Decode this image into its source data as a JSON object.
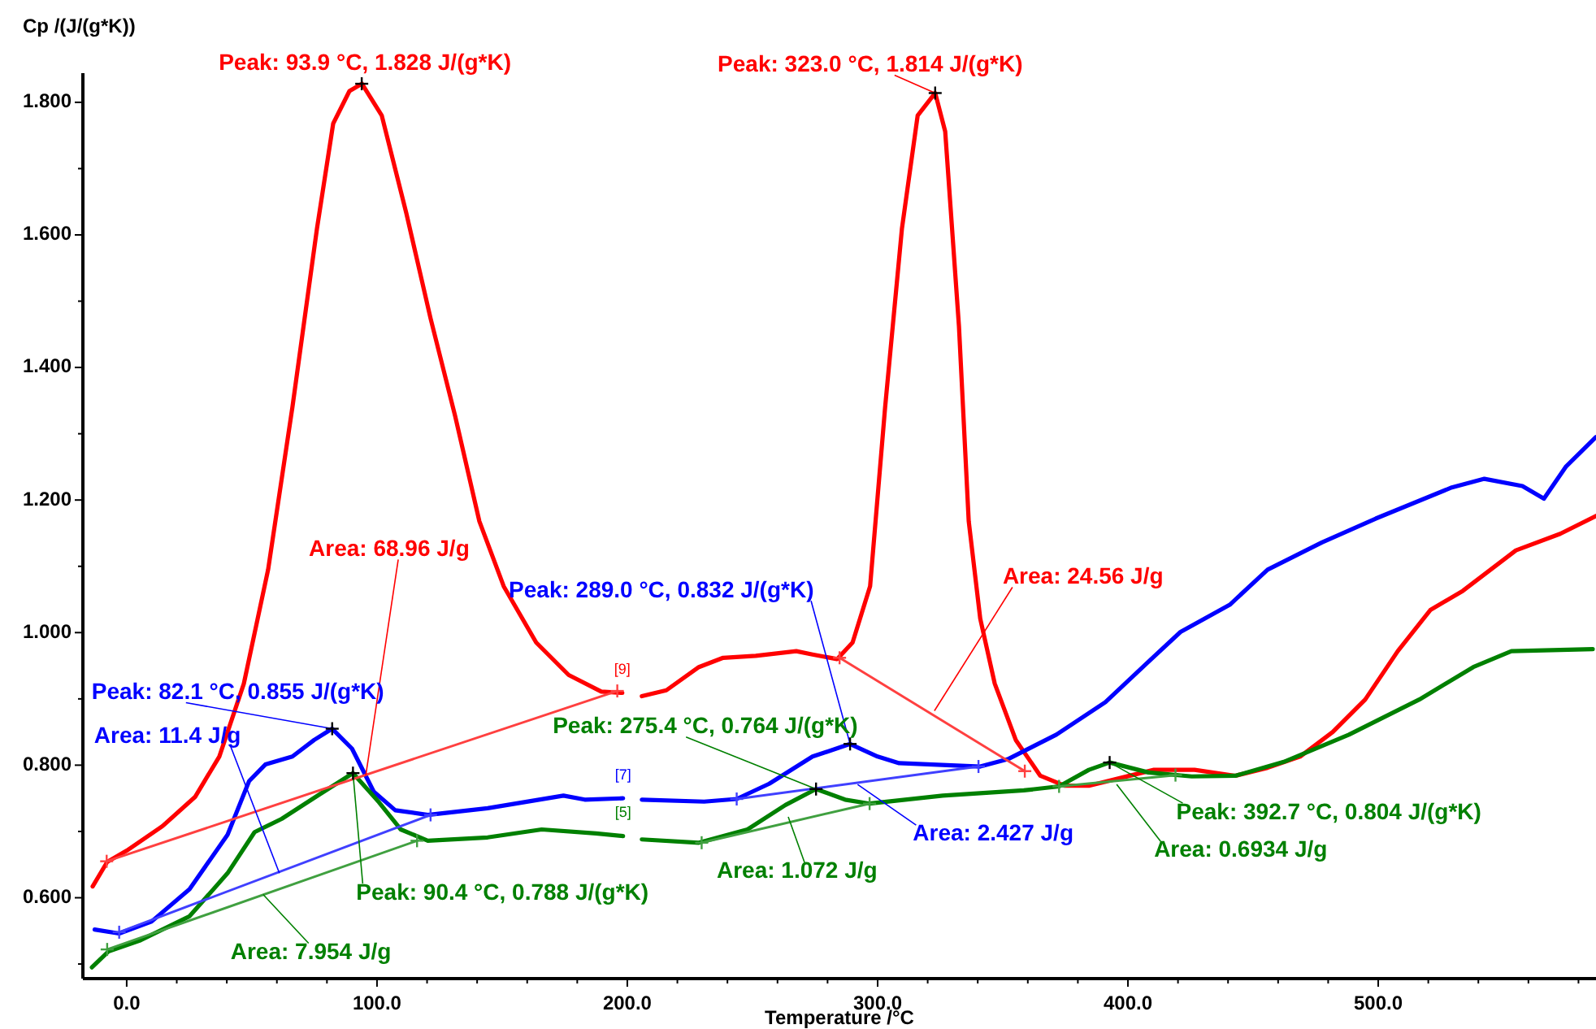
{
  "chart_data": {
    "type": "line",
    "xlabel": "Temperature /°C",
    "ylabel": "Cp /(J/(g*K))",
    "xlim": [
      -17.5,
      587
    ],
    "ylim": [
      0.478,
      1.844
    ],
    "xticks": [
      {
        "value": 0,
        "label": "0.0"
      },
      {
        "value": 20,
        "label": null
      },
      {
        "value": 40,
        "label": null
      },
      {
        "value": 60,
        "label": null
      },
      {
        "value": 80,
        "label": null
      },
      {
        "value": 100,
        "label": "100.0"
      },
      {
        "value": 120,
        "label": null
      },
      {
        "value": 140,
        "label": null
      },
      {
        "value": 160,
        "label": null
      },
      {
        "value": 180,
        "label": null
      },
      {
        "value": 200,
        "label": "200.0"
      },
      {
        "value": 220,
        "label": null
      },
      {
        "value": 240,
        "label": null
      },
      {
        "value": 260,
        "label": null
      },
      {
        "value": 280,
        "label": null
      },
      {
        "value": 300,
        "label": "300.0"
      },
      {
        "value": 320,
        "label": null
      },
      {
        "value": 340,
        "label": null
      },
      {
        "value": 360,
        "label": null
      },
      {
        "value": 380,
        "label": null
      },
      {
        "value": 400,
        "label": "400.0"
      },
      {
        "value": 420,
        "label": null
      },
      {
        "value": 440,
        "label": null
      },
      {
        "value": 460,
        "label": null
      },
      {
        "value": 480,
        "label": null
      },
      {
        "value": 500,
        "label": "500.0"
      },
      {
        "value": 520,
        "label": null
      },
      {
        "value": 540,
        "label": null
      },
      {
        "value": 560,
        "label": null
      },
      {
        "value": 580,
        "label": null
      }
    ],
    "yticks": [
      {
        "value": 0.5,
        "label": null
      },
      {
        "value": 0.6,
        "label": "0.600"
      },
      {
        "value": 0.7,
        "label": null
      },
      {
        "value": 0.8,
        "label": "0.800"
      },
      {
        "value": 0.9,
        "label": null
      },
      {
        "value": 1.0,
        "label": "1.000"
      },
      {
        "value": 1.1,
        "label": null
      },
      {
        "value": 1.2,
        "label": "1.200"
      },
      {
        "value": 1.3,
        "label": null
      },
      {
        "value": 1.4,
        "label": "1.400"
      },
      {
        "value": 1.5,
        "label": null
      },
      {
        "value": 1.6,
        "label": "1.600"
      },
      {
        "value": 1.7,
        "label": null
      },
      {
        "value": 1.8,
        "label": "1.800"
      }
    ],
    "marker": "none",
    "line_style": "solid",
    "series": [
      {
        "color": "#ff0000",
        "x": [
          -13.6,
          -7.8,
          0,
          14.3,
          27.3,
          37,
          46.8,
          56.5,
          66.2,
          76,
          82.5,
          89,
          94,
          101.9,
          111.7,
          121.4,
          131.2,
          140.9,
          150.6,
          163.6,
          176.6,
          189.6,
          198,
          201,
          205.8,
          215.6,
          228.6,
          238.3,
          251.3,
          267.5,
          274,
          283.8,
          290,
          297,
          303,
          309.7,
          316,
          323,
          327,
          332.5,
          336.4,
          341,
          346.8,
          355.2,
          365,
          374.7,
          384.4,
          397.4,
          410.4,
          426.6,
          442.9,
          455.8,
          468.8,
          481.8,
          494.8,
          507.8,
          520.8,
          533.8,
          555,
          572.7,
          587
        ],
        "values": [
          0.617,
          0.654,
          0.671,
          0.708,
          0.752,
          0.813,
          0.923,
          1.095,
          1.34,
          1.609,
          1.768,
          1.817,
          1.828,
          1.78,
          1.633,
          1.474,
          1.327,
          1.168,
          1.07,
          0.985,
          0.936,
          0.911,
          0.909,
          null,
          0.904,
          0.913,
          0.948,
          0.962,
          0.965,
          0.972,
          0.967,
          0.96,
          0.985,
          1.07,
          1.34,
          1.609,
          1.78,
          1.814,
          1.756,
          1.462,
          1.168,
          1.021,
          0.923,
          0.838,
          0.784,
          0.769,
          0.769,
          0.781,
          0.793,
          0.793,
          0.784,
          0.796,
          0.813,
          0.85,
          0.899,
          0.972,
          1.034,
          1.063,
          1.124,
          1.149,
          1.176
        ]
      },
      {
        "color": "#0000ff",
        "x": [
          -12.8,
          -3,
          9.9,
          25.1,
          40.3,
          48.9,
          55.4,
          66.2,
          74.9,
          82.1,
          90,
          98.7,
          107.3,
          120.3,
          144.2,
          174.5,
          183,
          198.3,
          201,
          205.8,
          230.7,
          243.7,
          256.7,
          274,
          289,
          300,
          308.6,
          341,
          352,
          371.4,
          391,
          408.2,
          421,
          440.7,
          455.8,
          477.5,
          499,
          529.4,
          542.4,
          557.6,
          566.2,
          574.9,
          587
        ],
        "values": [
          0.552,
          0.546,
          0.564,
          0.613,
          0.695,
          0.776,
          0.801,
          0.813,
          0.838,
          0.855,
          0.825,
          0.76,
          0.732,
          0.725,
          0.735,
          0.754,
          0.748,
          0.75,
          null,
          0.748,
          0.745,
          0.749,
          0.772,
          0.813,
          0.832,
          0.813,
          0.803,
          0.798,
          0.809,
          0.846,
          0.895,
          0.956,
          1.001,
          1.042,
          1.095,
          1.136,
          1.172,
          1.219,
          1.232,
          1.221,
          1.202,
          1.25,
          1.295
        ]
      },
      {
        "color": "#008000",
        "x": [
          -13.9,
          -7.3,
          5.6,
          25.1,
          40.3,
          51.1,
          61.9,
          77.1,
          90.4,
          100.8,
          109.5,
          120.3,
          144.2,
          165.8,
          187.5,
          198.3,
          201,
          205.8,
          228.6,
          248,
          263.2,
          275.4,
          287,
          296.8,
          326,
          358.4,
          372.5,
          384.4,
          392.7,
          408.2,
          425.5,
          442.9,
          462.3,
          488.3,
          516.4,
          538,
          553.2,
          585.7
        ],
        "values": [
          0.495,
          0.519,
          0.536,
          0.572,
          0.637,
          0.699,
          0.719,
          0.756,
          0.788,
          0.744,
          0.703,
          0.686,
          0.691,
          0.703,
          0.697,
          0.693,
          null,
          0.688,
          0.683,
          0.703,
          0.74,
          0.764,
          0.748,
          0.742,
          0.754,
          0.762,
          0.768,
          0.793,
          0.804,
          0.789,
          0.783,
          0.784,
          0.805,
          0.846,
          0.899,
          0.948,
          0.972,
          0.975
        ]
      },
      {
        "marker": "cross",
        "color": "#ff4040",
        "x": [
          -8,
          196
        ],
        "values": [
          0.655,
          0.912
        ]
      },
      {
        "marker": "cross",
        "color": "#ff4040",
        "x": [
          284.8,
          358.8
        ],
        "values": [
          0.962,
          0.791
        ]
      },
      {
        "marker": "cross",
        "color": "#4040ff",
        "x": [
          -3,
          121.4
        ],
        "values": [
          0.548,
          0.725
        ]
      },
      {
        "marker": "cross",
        "color": "#4040ff",
        "x": [
          243.7,
          340.3
        ],
        "values": [
          0.749,
          0.798
        ]
      },
      {
        "marker": "cross",
        "color": "#40a040",
        "x": [
          -7.8,
          116
        ],
        "values": [
          0.522,
          0.686
        ]
      },
      {
        "marker": "cross",
        "color": "#40a040",
        "x": [
          229.7,
          296.8
        ],
        "values": [
          0.683,
          0.742
        ]
      },
      {
        "marker": "cross",
        "color": "#40a040",
        "x": [
          372.5,
          419
        ],
        "values": [
          0.768,
          0.785
        ]
      }
    ],
    "annotations": [
      {
        "text": "Peak: 93.9 °C, 1.828 J/(g*K)",
        "x": 93.9,
        "y": 1.828
      },
      {
        "text": "Peak: 323.0 °C, 1.814 J/(g*K)",
        "x": 323.0,
        "y": 1.814
      },
      {
        "text": "Area: 68.96 J/g",
        "x": 95.5,
        "y": 0.784
      },
      {
        "text": "Area: 24.56 J/g",
        "x": 322.7,
        "y": 0.882
      },
      {
        "text": "Peak: 289.0 °C, 0.832 J/(g*K)",
        "x": 289.0,
        "y": 0.832
      },
      {
        "text": "Peak: 82.1 °C, 0.855 J/(g*K)",
        "x": 82.1,
        "y": 0.855
      },
      {
        "text": "Area: 11.4 J/g",
        "x": 61,
        "y": 0.637
      },
      {
        "text": "Peak: 275.4 °C, 0.764 J/(g*K)",
        "x": 275.4,
        "y": 0.764
      },
      {
        "text": "Peak: 90.4 °C, 0.788 J/(g*K)",
        "x": 90.4,
        "y": 0.788
      },
      {
        "text": "Area: 7.954 J/g",
        "x": 54.5,
        "y": 0.605
      },
      {
        "text": "Area: 1.072 J/g",
        "x": 264.3,
        "y": 0.722
      },
      {
        "text": "Area: 2.427 J/g",
        "x": 292,
        "y": 0.771
      },
      {
        "text": "Peak: 392.7 °C, 0.804 J/(g*K)",
        "x": 392.7,
        "y": 0.804
      },
      {
        "text": "Area: 0.6934 J/g",
        "x": 395.5,
        "y": 0.771
      },
      {
        "text": "[9]",
        "x": 198,
        "y": 0.909
      },
      {
        "text": "[7]",
        "x": 198.3,
        "y": 0.75
      },
      {
        "text": "[5]",
        "x": 198.3,
        "y": 0.693
      }
    ]
  }
}
